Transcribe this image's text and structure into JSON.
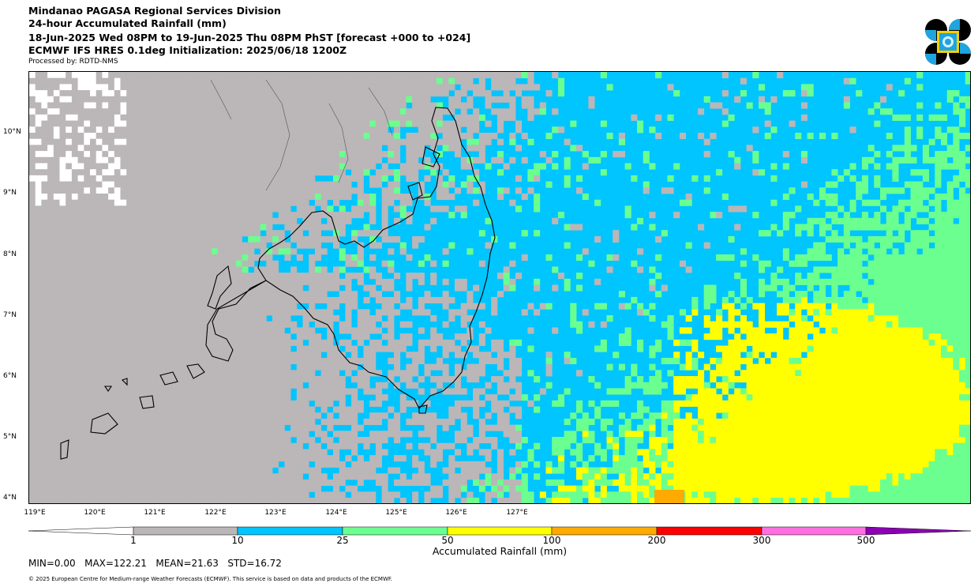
{
  "header": {
    "line1": "Mindanao PAGASA Regional Services Division",
    "line2": "24-hour Accumulated Rainfall (mm)",
    "line3": "18-Jun-2025 Wed 08PM to 19-Jun-2025 Thu 08PM PhST [forecast +000 to +024]",
    "line4": "ECMWF IFS HRES 0.1deg Initialization: 2025/06/18 1200Z",
    "line5": "Processed by: RDTD-NMS"
  },
  "map": {
    "lat_labels": [
      "10°N",
      "9°N",
      "8°N",
      "7°N",
      "6°N",
      "5°N",
      "4°N"
    ],
    "lon_labels": [
      "119°E",
      "120°E",
      "121°E",
      "122°E",
      "123°E",
      "124°E",
      "125°E",
      "126°E",
      "127°E"
    ],
    "colors": {
      "gray": "#bbb6b7",
      "blue": "#00c5ff",
      "green": "#6bff8f",
      "yellow": "#ffff00",
      "orange": "#ffaa00",
      "land_outline": "#000000"
    }
  },
  "colorbar": {
    "ticks": [
      "1",
      "10",
      "25",
      "50",
      "100",
      "200",
      "300",
      "500"
    ],
    "colors": [
      "#ffffff",
      "#bbb6b7",
      "#00c5ff",
      "#6bff8f",
      "#ffff00",
      "#ffaa00",
      "#ff0000",
      "#ff70e0",
      "#8c00b4"
    ],
    "label": "Accumulated Rainfall (mm)"
  },
  "stats": "MIN=0.00   MAX=122.21   MEAN=21.63   STD=16.72",
  "copyright": "© 2025 European Centre for Medium-range Weather Forecasts (ECMWF). This service is based on data and products of the ECMWF."
}
